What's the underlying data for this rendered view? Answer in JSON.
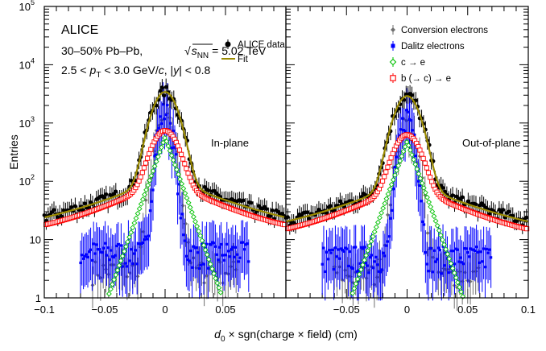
{
  "chart_data": {
    "type": "scatter",
    "experiment": "ALICE",
    "system_line": "30–50% Pb–Pb,",
    "energy_label": "= 5.02 TeV",
    "kinematics": [
      "2.5 <",
      "< 3.0 GeV/",
      ", |",
      "| < 0.8"
    ],
    "ylabel": "Entries",
    "xlabel": "× sgn(charge × field) (cm)",
    "y_scale": "log",
    "ylim": [
      1,
      100000
    ],
    "xlim": [
      -0.1,
      0.1
    ],
    "panels": [
      {
        "label": "In-plane",
        "scale": 1.0
      },
      {
        "label": "Out-of-plane",
        "scale": 0.85
      }
    ],
    "legend_left": [
      {
        "name": "ALICE data",
        "color": "#000000"
      },
      {
        "name": "Fit",
        "color": "#9a8a00"
      }
    ],
    "legend_right": [
      {
        "name": "Conversion electrons",
        "color": "#707070"
      },
      {
        "name": "Dalitz electrons",
        "color": "#0000ff"
      },
      {
        "name": "c → e",
        "color": "#00c000"
      },
      {
        "name": "b (→ c) → e",
        "color": "#ff0000"
      }
    ],
    "yticks": [
      {
        "v": 1,
        "label": "1"
      },
      {
        "v": 10,
        "label": "10"
      },
      {
        "v": 100,
        "label": "10",
        "exp": "2"
      },
      {
        "v": 1000,
        "label": "10",
        "exp": "3"
      },
      {
        "v": 10000,
        "label": "10",
        "exp": "4"
      },
      {
        "v": 100000,
        "label": "10",
        "exp": "5"
      }
    ],
    "xticks_left": [
      {
        "v": -0.1,
        "label": "−0.1"
      },
      {
        "v": -0.05,
        "label": "−0.05"
      },
      {
        "v": 0,
        "label": "0"
      },
      {
        "v": 0.05,
        "label": "0.05"
      }
    ],
    "xticks_right": [
      {
        "v": -0.05,
        "label": "−0.05"
      },
      {
        "v": 0,
        "label": "0"
      },
      {
        "v": 0.05,
        "label": "0.05"
      },
      {
        "v": 0.1,
        "label": "0.1"
      }
    ],
    "components": {
      "data": {
        "peak": 3300,
        "tail": 48,
        "sigma": 0.0085,
        "decay": 0.046,
        "color": "#000000"
      },
      "fit": {
        "peak": 3300,
        "tail": 48,
        "sigma": 0.0085,
        "decay": 0.046,
        "color": "#9a8a00"
      },
      "conversion": {
        "peak": 1100,
        "sigma": 0.006,
        "floor": 3,
        "color": "#707070"
      },
      "dalitz": {
        "peak": 1600,
        "sigma": 0.0045,
        "floor": 6,
        "color": "#0000ff"
      },
      "c_to_e": {
        "peak": 570,
        "decay": 0.0075,
        "color": "#00c000"
      },
      "b_to_e": {
        "peak": 640,
        "sigma": 0.009,
        "tail": 50,
        "decay": 0.04,
        "color": "#ff0000"
      }
    }
  }
}
